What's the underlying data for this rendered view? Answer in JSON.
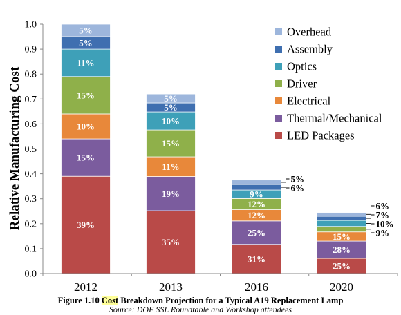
{
  "chart_data": {
    "type": "bar",
    "stacked": true,
    "categories": [
      "2012",
      "2013",
      "2016",
      "2020"
    ],
    "totals": [
      1.0,
      0.72,
      0.375,
      0.245
    ],
    "series": [
      {
        "name": "LED Packages",
        "color": "#b94a48",
        "values": [
          0.39,
          0.252,
          0.117,
          0.061
        ],
        "labels": [
          "39%",
          "35%",
          "31%",
          "25%"
        ]
      },
      {
        "name": "Thermal/Mechanical",
        "color": "#7b5c9e",
        "values": [
          0.15,
          0.137,
          0.094,
          0.069
        ],
        "labels": [
          "15%",
          "19%",
          "25%",
          "28%"
        ]
      },
      {
        "name": "Electrical",
        "color": "#e8883a",
        "values": [
          0.1,
          0.079,
          0.045,
          0.037
        ],
        "labels": [
          "10%",
          "11%",
          "12%",
          "15%"
        ]
      },
      {
        "name": "Driver",
        "color": "#8fb04a",
        "values": [
          0.15,
          0.108,
          0.045,
          0.022
        ],
        "labels": [
          "15%",
          "15%",
          "12%",
          "9%"
        ]
      },
      {
        "name": "Optics",
        "color": "#3ea0b8",
        "values": [
          0.11,
          0.072,
          0.034,
          0.024
        ],
        "labels": [
          "11%",
          "10%",
          "9%",
          "10%"
        ]
      },
      {
        "name": "Assembly",
        "color": "#3f6fb0",
        "values": [
          0.05,
          0.036,
          0.022,
          0.017
        ],
        "labels": [
          "5%",
          "5%",
          "6%",
          "7%"
        ]
      },
      {
        "name": "Overhead",
        "color": "#9db6dc",
        "values": [
          0.05,
          0.036,
          0.018,
          0.015
        ],
        "labels": [
          "5%",
          "5%",
          "5%",
          "6%"
        ]
      }
    ],
    "ylabel": "Relative Manufacturing Cost",
    "xlabel": "",
    "ylim": [
      0,
      1.0
    ],
    "yticks": [
      "0.0",
      "0.1",
      "0.2",
      "0.3",
      "0.4",
      "0.5",
      "0.6",
      "0.7",
      "0.8",
      "0.9",
      "1.0"
    ],
    "grid": false,
    "legend": "top-right",
    "legend_order": [
      "Overhead",
      "Assembly",
      "Optics",
      "Driver",
      "Electrical",
      "Thermal/Mechanical",
      "LED Packages"
    ]
  },
  "caption": {
    "figure_prefix": "Figure 1.10 ",
    "highlight_word": "Cost",
    "rest": " Breakdown Projection for a Typical A19 Replacement Lamp",
    "source": "Source: DOE SSL Roundtable and Workshop attendees"
  }
}
